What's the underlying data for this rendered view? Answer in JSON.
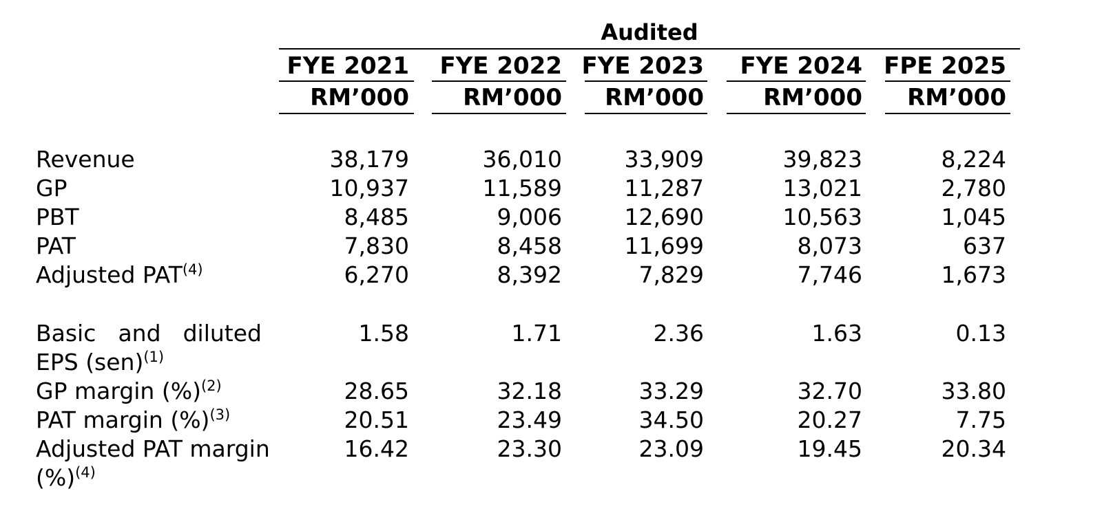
{
  "header": {
    "group_label": "Audited",
    "columns": [
      {
        "period": "FYE 2021",
        "unit": "RM’000"
      },
      {
        "period": "FYE 2022",
        "unit": "RM’000"
      },
      {
        "period": "FYE 2023",
        "unit": "RM’000"
      },
      {
        "period": "FYE 2024",
        "unit": "RM’000"
      },
      {
        "period": "FPE 2025",
        "unit": "RM’000"
      }
    ]
  },
  "rows": [
    {
      "label": "Revenue",
      "note": "",
      "values": [
        "38,179",
        "36,010",
        "33,909",
        "39,823",
        "8,224"
      ]
    },
    {
      "label": "GP",
      "note": "",
      "values": [
        "10,937",
        "11,589",
        "11,287",
        "13,021",
        "2,780"
      ]
    },
    {
      "label": "PBT",
      "note": "",
      "values": [
        "8,485",
        "9,006",
        "12,690",
        "10,563",
        "1,045"
      ]
    },
    {
      "label": "PAT",
      "note": "",
      "values": [
        "7,830",
        "8,458",
        "11,699",
        "8,073",
        "637"
      ]
    },
    {
      "label": "Adjusted PAT",
      "note": "(4)",
      "values": [
        "6,270",
        "8,392",
        "7,829",
        "7,746",
        "1,673"
      ]
    },
    {
      "label_line1_words": [
        "Basic",
        "and",
        "diluted"
      ],
      "label_line2": "EPS (sen)",
      "note": "(1)",
      "values": [
        "1.58",
        "1.71",
        "2.36",
        "1.63",
        "0.13"
      ]
    },
    {
      "label": "GP margin (%)",
      "note": "(2)",
      "values": [
        "28.65",
        "32.18",
        "33.29",
        "32.70",
        "33.80"
      ]
    },
    {
      "label": "PAT margin (%)",
      "note": "(3)",
      "values": [
        "20.51",
        "23.49",
        "34.50",
        "20.27",
        "7.75"
      ]
    },
    {
      "label_line1": "Adjusted PAT margin",
      "label_line2": "(%)",
      "note": "(4)",
      "values": [
        "16.42",
        "23.30",
        "23.09",
        "19.45",
        "20.34"
      ]
    }
  ]
}
